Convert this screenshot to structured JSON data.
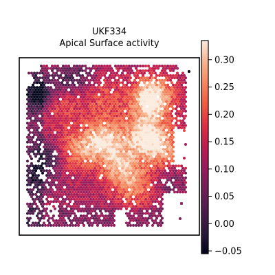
{
  "chart_data": {
    "type": "heatmap",
    "subtype": "spatial-hexbin",
    "title_line1": "UKF334",
    "title_line2": "Apical Surface activity",
    "xlabel": "",
    "ylabel": "",
    "colormap": "rocket",
    "colorbar": {
      "range": [
        -0.055,
        0.335
      ],
      "ticks": [
        -0.05,
        0.0,
        0.05,
        0.1,
        0.15,
        0.2,
        0.25,
        0.3
      ],
      "tick_labels": [
        "−0.05",
        "0.00",
        "0.05",
        "0.10",
        "0.15",
        "0.20",
        "0.25",
        "0.30"
      ],
      "placement": "right"
    },
    "tissue_extent": {
      "x": [
        0,
        1
      ],
      "y": [
        0,
        1
      ]
    },
    "hotspots": [
      {
        "x": 0.48,
        "y": 0.46,
        "value": 0.31
      },
      {
        "x": 0.74,
        "y": 0.44,
        "value": 0.31
      },
      {
        "x": 0.76,
        "y": 0.22,
        "value": 0.28
      },
      {
        "x": 0.3,
        "y": 0.53,
        "value": 0.25
      },
      {
        "x": 0.86,
        "y": 0.52,
        "value": 0.26
      },
      {
        "x": 0.58,
        "y": 0.62,
        "value": 0.27
      },
      {
        "x": 0.2,
        "y": 0.24,
        "value": 0.21
      },
      {
        "x": 0.48,
        "y": 0.2,
        "value": 0.2
      },
      {
        "x": 0.68,
        "y": 0.76,
        "value": 0.24
      },
      {
        "x": 0.82,
        "y": 0.18,
        "value": 0.24
      }
    ],
    "coldspots": [
      {
        "x": 0.08,
        "y": 0.18,
        "value": -0.05
      },
      {
        "x": 0.14,
        "y": 0.56,
        "value": 0.0
      },
      {
        "x": 0.08,
        "y": 0.7,
        "value": 0.03
      },
      {
        "x": 0.34,
        "y": 0.06,
        "value": 0.04
      },
      {
        "x": 0.9,
        "y": 0.72,
        "value": 0.06
      },
      {
        "x": 0.22,
        "y": 0.1,
        "value": 0.04
      }
    ],
    "value_range": [
      -0.055,
      0.335
    ],
    "background_level": 0.12,
    "grid": false,
    "legend": "none"
  }
}
